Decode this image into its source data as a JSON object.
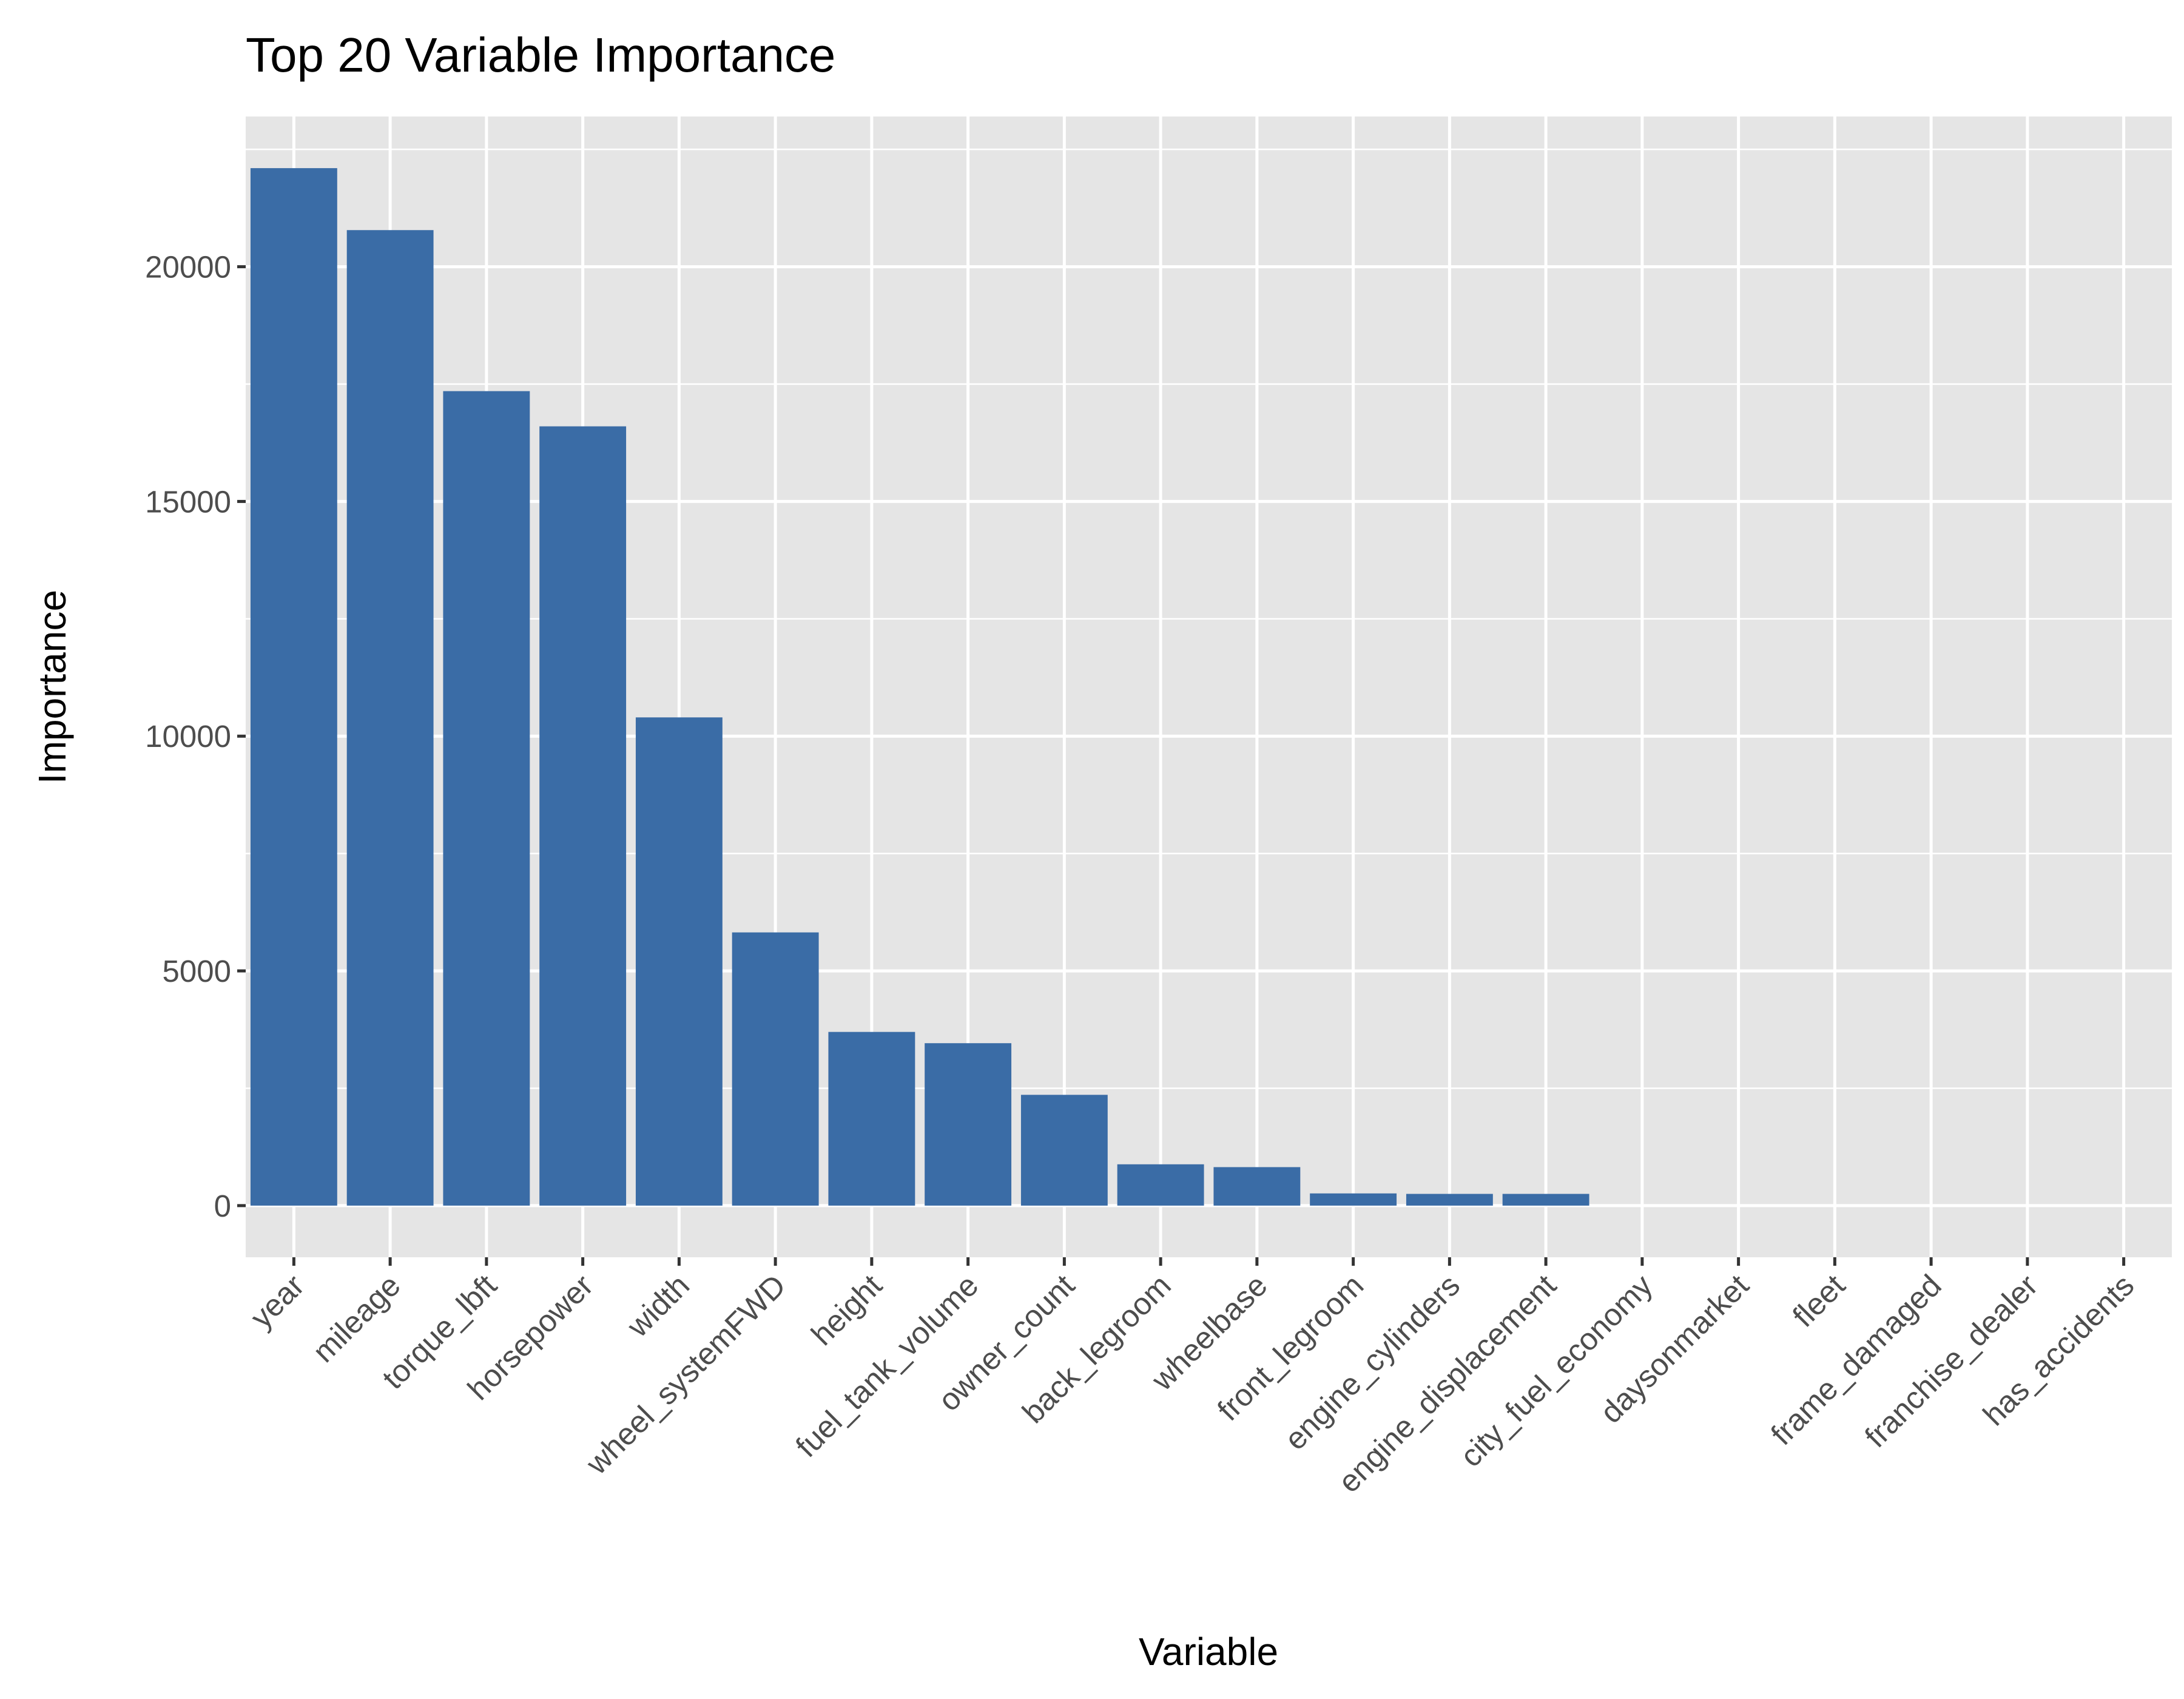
{
  "chart_data": {
    "type": "bar",
    "title": "Top 20 Variable Importance",
    "xlabel": "Variable",
    "ylabel": "Importance",
    "categories": [
      "year",
      "mileage",
      "torque_lbft",
      "horsepower",
      "width",
      "wheel_systemFWD",
      "height",
      "fuel_tank_volume",
      "owner_count",
      "back_legroom",
      "wheelbase",
      "front_legroom",
      "engine_cylinders",
      "engine_displacement",
      "city_fuel_economy",
      "daysonmarket",
      "fleet",
      "frame_damaged",
      "franchise_dealer",
      "has_accidents"
    ],
    "values": [
      22100,
      20780,
      17350,
      16600,
      10400,
      5820,
      3700,
      3460,
      2360,
      880,
      820,
      260,
      250,
      250,
      0,
      0,
      0,
      0,
      0,
      0
    ],
    "ylim": [
      -1100,
      23200
    ],
    "yticks": [
      0,
      5000,
      10000,
      15000,
      20000
    ],
    "ytick_labels": [
      "0",
      "5000",
      "10000",
      "15000",
      "20000"
    ],
    "grid": true,
    "bar_color": "#3A6CA6",
    "panel_color": "#E5E5E5",
    "grid_color": "#FFFFFF"
  }
}
